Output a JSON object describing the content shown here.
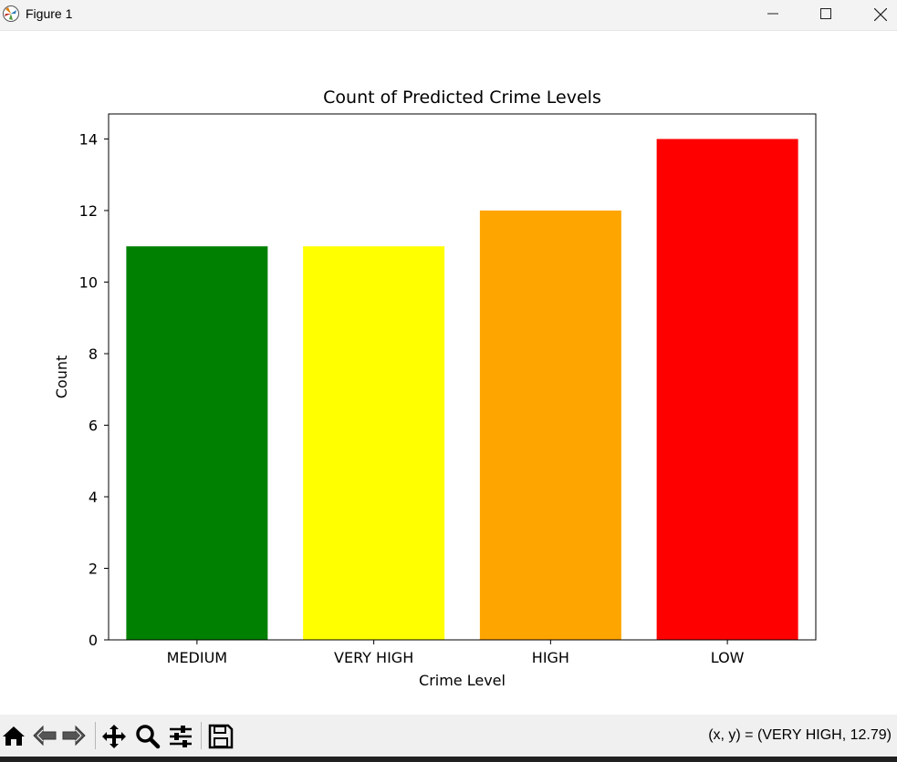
{
  "window": {
    "title": "Figure 1",
    "app_icon": "matplotlib-icon",
    "controls": [
      "minimize-icon",
      "maximize-icon",
      "close-icon"
    ]
  },
  "toolbar": {
    "tools": [
      "home-icon",
      "back-arrow-icon",
      "forward-arrow-icon",
      "pan-move-icon",
      "zoom-magnifier-icon",
      "configure-subplots-icon",
      "save-disk-icon"
    ],
    "coordinates": "(x, y) = (VERY HIGH, 12.79)"
  },
  "chart_data": {
    "type": "bar",
    "title": "Count of Predicted Crime Levels",
    "xlabel": "Crime Level",
    "ylabel": "Count",
    "categories": [
      "MEDIUM",
      "VERY HIGH",
      "HIGH",
      "LOW"
    ],
    "values": [
      11,
      11,
      12,
      14
    ],
    "colors": [
      "#008000",
      "#ffff00",
      "#ffa500",
      "#ff0000"
    ],
    "ylim": [
      0,
      14.7
    ],
    "yticks": [
      0,
      2,
      4,
      6,
      8,
      10,
      12,
      14
    ],
    "grid": false
  }
}
